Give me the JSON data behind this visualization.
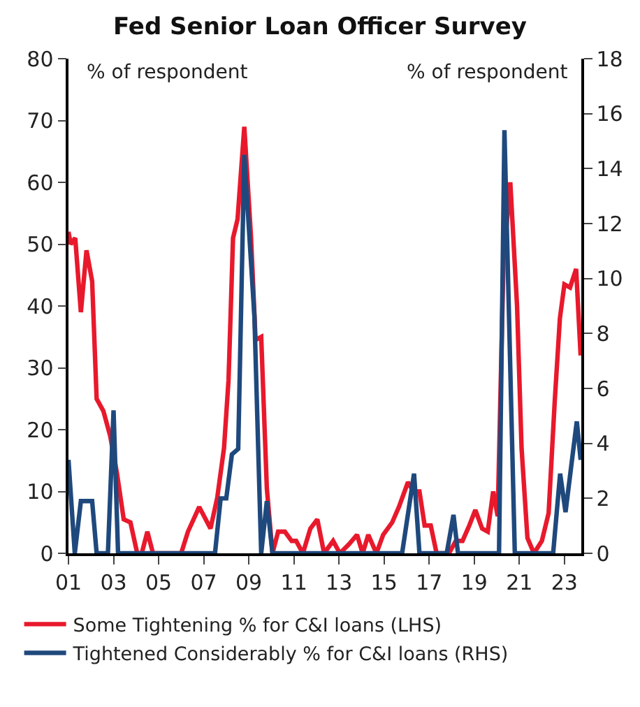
{
  "chart_data": {
    "type": "line",
    "title": "Fed Senior Loan Officer Survey",
    "annotations": [
      "% of respondent",
      "% of respondent"
    ],
    "xlim": [
      2001,
      2023.75
    ],
    "xticks": [
      {
        "value": 2001,
        "label": "01"
      },
      {
        "value": 2003,
        "label": "03"
      },
      {
        "value": 2005,
        "label": "05"
      },
      {
        "value": 2007,
        "label": "07"
      },
      {
        "value": 2009,
        "label": "09"
      },
      {
        "value": 2011,
        "label": "11"
      },
      {
        "value": 2013,
        "label": "13"
      },
      {
        "value": 2015,
        "label": "15"
      },
      {
        "value": 2017,
        "label": "17"
      },
      {
        "value": 2019,
        "label": "19"
      },
      {
        "value": 2021,
        "label": "21"
      },
      {
        "value": 2023,
        "label": "23"
      }
    ],
    "ylim": [
      0,
      80
    ],
    "yticks": [
      0,
      10,
      20,
      30,
      40,
      50,
      60,
      70,
      80
    ],
    "y2lim": [
      0,
      18
    ],
    "y2ticks": [
      0,
      2,
      4,
      6,
      8,
      10,
      12,
      14,
      16,
      18
    ],
    "legend": "bottom",
    "marker": "none",
    "line_style": "solid",
    "series": [
      {
        "name": "Some Tightening % for C&I loans (LHS)",
        "color": "#e8192c",
        "x": [
          2001.0,
          2001.1,
          2001.3,
          2001.55,
          2001.8,
          2002.05,
          2002.25,
          2002.55,
          2002.85,
          2003.15,
          2003.45,
          2003.75,
          2004.05,
          2004.25,
          2004.5,
          2004.75,
          2006.0,
          2006.3,
          2006.8,
          2007.3,
          2007.6,
          2007.9,
          2008.1,
          2008.3,
          2008.5,
          2008.8,
          2009.1,
          2009.3,
          2009.55,
          2009.8,
          2010.05,
          2010.3,
          2010.6,
          2010.9,
          2011.1,
          2011.4,
          2011.73,
          2012.04,
          2012.34,
          2012.74,
          2013.04,
          2013.45,
          2013.8,
          2014.05,
          2014.3,
          2014.66,
          2014.96,
          2015.36,
          2015.66,
          2016.06,
          2016.3,
          2016.57,
          2016.8,
          2017.07,
          2017.33,
          2017.88,
          2018.18,
          2018.48,
          2018.78,
          2019.05,
          2019.35,
          2019.6,
          2019.84,
          2020.04,
          2020.3,
          2020.6,
          2020.9,
          2021.1,
          2021.36,
          2021.65,
          2022.0,
          2022.3,
          2022.57,
          2022.8,
          2023.0,
          2023.25,
          2023.52,
          2023.72
        ],
        "values": [
          52,
          50,
          51,
          39,
          49,
          44,
          25,
          23,
          19,
          13,
          5.5,
          5,
          0,
          0,
          3.5,
          0,
          0,
          3.5,
          7.5,
          4,
          9,
          17,
          28,
          51,
          54,
          69,
          51,
          34.5,
          35,
          10.5,
          0,
          3.5,
          3.5,
          2,
          2,
          0,
          4,
          5.5,
          0,
          2,
          0,
          1.5,
          3,
          0,
          3,
          0,
          3,
          5,
          7.5,
          11.5,
          10,
          10,
          4.5,
          4.5,
          0,
          0,
          2,
          2,
          4.5,
          7,
          4,
          3.5,
          10,
          6,
          47.5,
          60,
          40,
          17,
          2.5,
          0,
          2,
          6.5,
          24.5,
          38,
          43.5,
          43,
          46,
          32
        ]
      },
      {
        "name": "Tightened Considerably % for C&I loans (RHS)",
        "color": "#1f497d",
        "axis": "y2",
        "x": [
          2001.0,
          2001.28,
          2001.55,
          2002.05,
          2002.25,
          2002.75,
          2003.0,
          2003.2,
          2007.5,
          2007.75,
          2008.0,
          2008.25,
          2008.53,
          2008.8,
          2009.25,
          2009.55,
          2009.8,
          2010.05,
          2015.8,
          2016.33,
          2016.57,
          2017.78,
          2018.08,
          2018.28,
          2020.1,
          2020.34,
          2020.8,
          2022.5,
          2022.81,
          2023.05,
          2023.55,
          2023.72
        ],
        "values": [
          3.4,
          0,
          1.9,
          1.9,
          0,
          0,
          5.2,
          0,
          0,
          2,
          2,
          3.6,
          3.8,
          14.5,
          8.6,
          0,
          1.9,
          0,
          0,
          2.9,
          0,
          0,
          1.4,
          0,
          0,
          15.4,
          0,
          0,
          2.9,
          1.5,
          4.8,
          3.4
        ]
      }
    ]
  }
}
